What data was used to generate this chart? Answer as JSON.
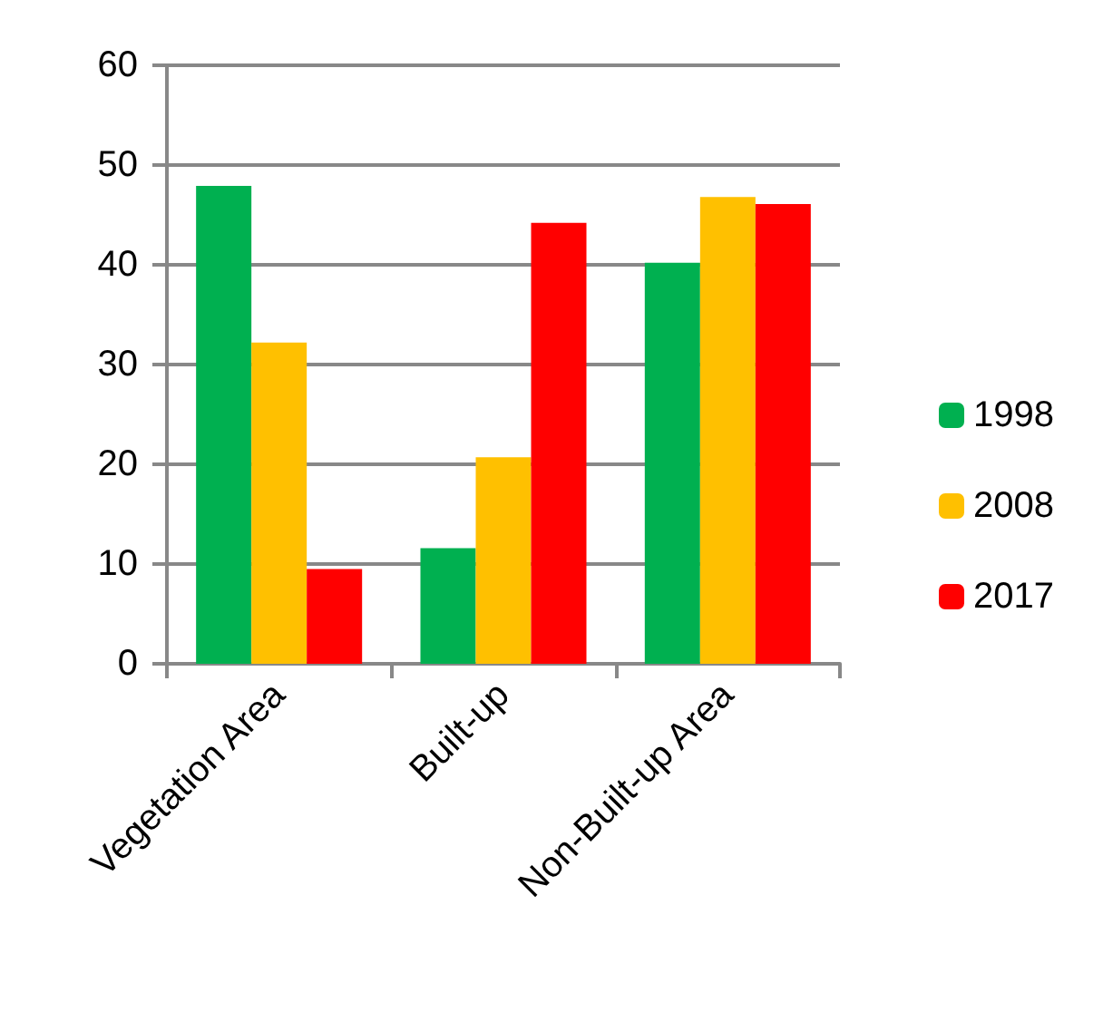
{
  "chart_data": {
    "type": "bar",
    "categories": [
      "Vegetation Area",
      "Built-up",
      "Non-Built-up Area"
    ],
    "series": [
      {
        "name": "1998",
        "color": "#00b050",
        "values": [
          47.9,
          11.6,
          40.2
        ]
      },
      {
        "name": "2008",
        "color": "#ffc000",
        "values": [
          32.2,
          20.7,
          46.8
        ]
      },
      {
        "name": "2017",
        "color": "#ff0000",
        "values": [
          9.5,
          44.2,
          46.1
        ]
      }
    ],
    "ylim": [
      0,
      60
    ],
    "yticks": [
      0,
      10,
      20,
      30,
      40,
      50,
      60
    ],
    "grid": "y",
    "legend": "right"
  }
}
